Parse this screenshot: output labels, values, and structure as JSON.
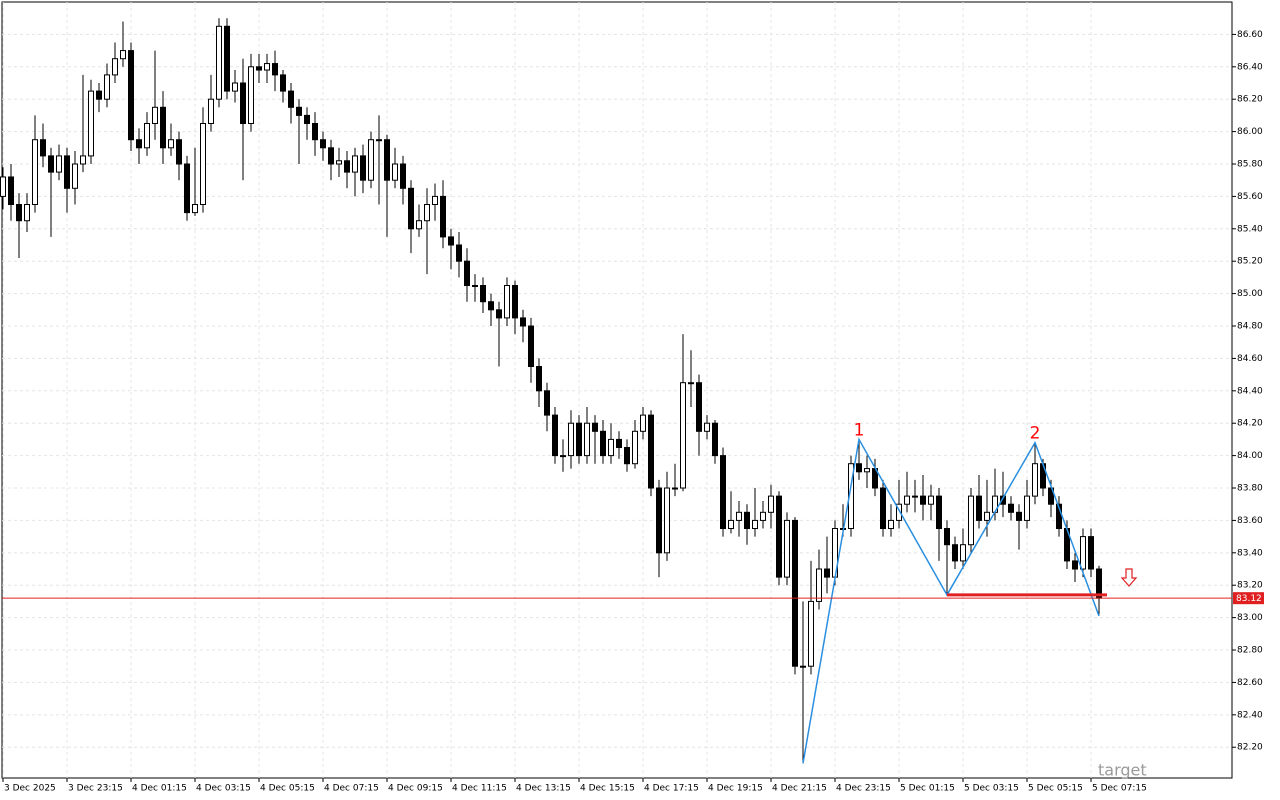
{
  "chart_data": {
    "type": "candlestick",
    "color": "#000000",
    "categories": [
      "3 Dec 2025",
      null,
      null,
      null,
      null,
      null,
      null,
      null,
      "3 Dec 23:15",
      null,
      null,
      null,
      null,
      null,
      null,
      null,
      "4 Dec 01:15",
      null,
      null,
      null,
      null,
      null,
      null,
      null,
      "4 Dec 03:15",
      null,
      null,
      null,
      null,
      null,
      null,
      null,
      "4 Dec 05:15",
      null,
      null,
      null,
      null,
      null,
      null,
      null,
      "4 Dec 07:15",
      null,
      null,
      null,
      null,
      null,
      null,
      null,
      "4 Dec 09:15",
      null,
      null,
      null,
      null,
      null,
      null,
      null,
      "4 Dec 11:15",
      null,
      null,
      null,
      null,
      null,
      null,
      null,
      "4 Dec 13:15",
      null,
      null,
      null,
      null,
      null,
      null,
      null,
      "4 Dec 15:15",
      null,
      null,
      null,
      null,
      null,
      null,
      null,
      "4 Dec 17:15",
      null,
      null,
      null,
      null,
      null,
      null,
      null,
      "4 Dec 19:15",
      null,
      null,
      null,
      null,
      null,
      null,
      null,
      "4 Dec 21:15",
      null,
      null,
      null,
      null,
      null,
      null,
      null,
      "4 Dec 23:15",
      null,
      null,
      null,
      null,
      null,
      null,
      null,
      "5 Dec 01:15",
      null,
      null,
      null,
      null,
      null,
      null,
      null,
      "5 Dec 03:15",
      null,
      null,
      null,
      null,
      null,
      null,
      null,
      "5 Dec 05:15",
      null,
      null,
      null,
      null,
      null,
      null,
      null,
      "5 Dec 07:15",
      null
    ],
    "open": [
      85.6,
      85.72,
      85.55,
      85.45,
      85.55,
      85.95,
      85.85,
      85.75,
      85.85,
      85.65,
      85.8,
      85.85,
      86.25,
      86.2,
      86.35,
      86.45,
      86.5,
      85.95,
      85.9,
      86.05,
      86.15,
      85.9,
      85.95,
      85.8,
      85.5,
      85.55,
      86.05,
      86.2,
      86.65,
      86.25,
      86.3,
      86.05,
      86.4,
      86.38,
      86.42,
      86.35,
      86.25,
      86.15,
      86.1,
      86.05,
      85.95,
      85.9,
      85.8,
      85.82,
      85.75,
      85.85,
      85.7,
      85.95,
      85.95,
      85.7,
      85.8,
      85.65,
      85.4,
      85.45,
      85.55,
      85.6,
      85.35,
      85.3,
      85.2,
      85.05,
      85.05,
      84.95,
      84.9,
      84.85,
      85.05,
      84.85,
      84.8,
      84.55,
      84.4,
      84.25,
      84.0,
      84.0,
      84.2,
      84.0,
      84.2,
      84.15,
      84.0,
      84.1,
      84.05,
      83.95,
      84.15,
      84.25,
      83.8,
      83.4,
      83.8,
      83.8,
      84.45,
      84.45,
      84.15,
      84.2,
      84.0,
      83.55,
      83.6,
      83.65,
      83.55,
      83.6,
      83.65,
      83.75,
      83.25,
      83.6,
      82.7,
      82.7,
      83.1,
      83.3,
      83.25,
      83.55,
      83.55,
      83.95,
      83.9,
      83.92,
      83.8,
      83.55,
      83.6,
      83.7,
      83.75,
      83.75,
      83.7,
      83.75,
      83.55,
      83.45,
      83.35,
      83.45,
      83.75,
      83.6,
      83.65,
      83.75,
      83.7,
      83.65,
      83.6,
      83.75,
      83.95,
      83.8,
      83.7,
      83.55,
      83.35,
      83.3,
      83.5,
      83.3
    ],
    "high": [
      85.78,
      85.8,
      85.62,
      85.62,
      86.1,
      86.05,
      85.9,
      85.92,
      85.9,
      85.88,
      86.35,
      86.32,
      86.3,
      86.42,
      86.55,
      86.68,
      86.55,
      86.02,
      86.12,
      86.5,
      86.25,
      86.05,
      86.0,
      85.85,
      85.9,
      86.15,
      86.35,
      86.7,
      86.7,
      86.38,
      86.45,
      86.48,
      86.48,
      86.48,
      86.5,
      86.38,
      86.3,
      86.2,
      86.15,
      86.12,
      86.0,
      85.95,
      85.9,
      85.88,
      85.9,
      85.92,
      86.0,
      86.1,
      85.98,
      85.9,
      85.85,
      85.7,
      85.55,
      85.65,
      85.68,
      85.7,
      85.4,
      85.38,
      85.28,
      85.12,
      85.1,
      85.0,
      84.95,
      85.1,
      85.08,
      84.9,
      84.85,
      84.6,
      84.45,
      84.3,
      84.1,
      84.28,
      84.25,
      84.3,
      84.25,
      84.22,
      84.2,
      84.15,
      84.1,
      84.22,
      84.3,
      84.28,
      83.85,
      83.9,
      83.95,
      84.75,
      84.65,
      84.5,
      84.25,
      84.22,
      84.05,
      83.78,
      83.72,
      83.7,
      83.8,
      83.72,
      83.82,
      83.78,
      83.65,
      83.62,
      83.1,
      83.35,
      83.42,
      83.5,
      83.6,
      83.7,
      84.0,
      84.1,
      84.0,
      83.98,
      83.85,
      83.7,
      83.85,
      83.9,
      83.85,
      83.88,
      83.82,
      83.8,
      83.6,
      83.5,
      83.55,
      83.8,
      83.88,
      83.85,
      83.92,
      83.9,
      83.75,
      83.7,
      83.85,
      84.08,
      83.98,
      83.85,
      83.75,
      83.6,
      83.4,
      83.55,
      83.55,
      83.32
    ],
    "low": [
      85.52,
      85.45,
      85.22,
      85.38,
      85.5,
      85.78,
      85.35,
      85.7,
      85.5,
      85.55,
      85.75,
      85.8,
      86.12,
      86.15,
      86.3,
      86.4,
      85.88,
      85.8,
      85.85,
      85.95,
      85.8,
      85.85,
      85.7,
      85.45,
      85.48,
      85.5,
      86.0,
      86.15,
      86.2,
      86.18,
      85.7,
      86.0,
      86.3,
      86.3,
      86.25,
      86.18,
      86.05,
      85.8,
      85.95,
      85.85,
      85.82,
      85.7,
      85.72,
      85.65,
      85.6,
      85.62,
      85.65,
      85.55,
      85.35,
      85.65,
      85.55,
      85.25,
      85.35,
      85.12,
      85.45,
      85.28,
      85.15,
      85.1,
      84.95,
      84.95,
      84.88,
      84.8,
      84.55,
      84.8,
      84.75,
      84.7,
      84.45,
      84.3,
      84.15,
      83.95,
      83.9,
      83.92,
      83.95,
      83.95,
      83.95,
      83.95,
      83.95,
      83.98,
      83.9,
      83.92,
      84.1,
      83.75,
      83.25,
      83.35,
      83.75,
      83.78,
      84.3,
      84.0,
      84.1,
      83.95,
      83.5,
      83.52,
      83.5,
      83.45,
      83.5,
      83.55,
      83.55,
      83.2,
      83.2,
      82.65,
      82.1,
      82.65,
      83.05,
      83.15,
      83.2,
      83.5,
      83.5,
      83.85,
      83.8,
      83.75,
      83.5,
      83.5,
      83.55,
      83.65,
      83.65,
      83.6,
      83.6,
      83.35,
      83.15,
      83.3,
      83.3,
      83.4,
      83.55,
      83.5,
      83.6,
      83.62,
      83.6,
      83.42,
      83.55,
      83.7,
      83.75,
      83.62,
      83.5,
      83.3,
      83.22,
      83.25,
      83.25,
      83.02
    ],
    "close": [
      85.72,
      85.55,
      85.45,
      85.55,
      85.95,
      85.85,
      85.75,
      85.85,
      85.65,
      85.8,
      85.85,
      86.25,
      86.2,
      86.35,
      86.45,
      86.5,
      85.95,
      85.9,
      86.05,
      86.15,
      85.9,
      85.95,
      85.8,
      85.5,
      85.55,
      86.05,
      86.2,
      86.65,
      86.25,
      86.3,
      86.05,
      86.4,
      86.38,
      86.42,
      86.35,
      86.25,
      86.15,
      86.1,
      86.05,
      85.95,
      85.9,
      85.8,
      85.82,
      85.75,
      85.85,
      85.7,
      85.95,
      85.95,
      85.7,
      85.8,
      85.65,
      85.4,
      85.45,
      85.55,
      85.6,
      85.35,
      85.3,
      85.2,
      85.05,
      85.05,
      84.95,
      84.9,
      84.85,
      85.05,
      84.85,
      84.8,
      84.55,
      84.4,
      84.25,
      84.0,
      84.0,
      84.2,
      84.0,
      84.2,
      84.15,
      84.0,
      84.1,
      84.05,
      83.95,
      84.15,
      84.25,
      83.8,
      83.4,
      83.8,
      83.8,
      84.45,
      84.45,
      84.15,
      84.2,
      84.0,
      83.55,
      83.6,
      83.65,
      83.55,
      83.6,
      83.65,
      83.75,
      83.25,
      83.6,
      82.7,
      82.7,
      83.1,
      83.3,
      83.25,
      83.55,
      83.55,
      83.95,
      83.9,
      83.92,
      83.8,
      83.55,
      83.6,
      83.7,
      83.75,
      83.75,
      83.7,
      83.75,
      83.55,
      83.45,
      83.35,
      83.45,
      83.75,
      83.6,
      83.65,
      83.75,
      83.7,
      83.65,
      83.6,
      83.75,
      83.95,
      83.8,
      83.7,
      83.55,
      83.35,
      83.3,
      83.5,
      83.3,
      83.12
    ],
    "ylim": [
      82.01,
      86.8
    ],
    "yticks": [
      {
        "value": 82.2,
        "label": "82.20"
      },
      {
        "value": 82.4,
        "label": "82.40"
      },
      {
        "value": 82.6,
        "label": "82.60"
      },
      {
        "value": 82.8,
        "label": "82.80"
      },
      {
        "value": 83.0,
        "label": "83.00"
      },
      {
        "value": 83.2,
        "label": "83.20"
      },
      {
        "value": 83.4,
        "label": "83.40"
      },
      {
        "value": 83.6,
        "label": "83.60"
      },
      {
        "value": 83.8,
        "label": "83.80"
      },
      {
        "value": 84.0,
        "label": "84.00"
      },
      {
        "value": 84.2,
        "label": "84.20"
      },
      {
        "value": 84.4,
        "label": "84.40"
      },
      {
        "value": 84.6,
        "label": "84.60"
      },
      {
        "value": 84.8,
        "label": "84.80"
      },
      {
        "value": 85.0,
        "label": "85.00"
      },
      {
        "value": 85.2,
        "label": "85.20"
      },
      {
        "value": 85.4,
        "label": "85.40"
      },
      {
        "value": 85.6,
        "label": "85.60"
      },
      {
        "value": 85.8,
        "label": "85.80"
      },
      {
        "value": 86.0,
        "label": "86.00"
      },
      {
        "value": 86.2,
        "label": "86.20"
      },
      {
        "value": 86.4,
        "label": "86.40"
      },
      {
        "value": 86.6,
        "label": "86.60"
      }
    ],
    "grid": true,
    "last_price": {
      "value": 83.12,
      "color": "#e02020"
    },
    "zigzag": {
      "color": "#2a8fe0",
      "x": [
        100,
        107,
        118,
        129,
        137
      ],
      "values": [
        82.1,
        84.1,
        83.14,
        84.08,
        83.01
      ],
      "labels": [
        null,
        "1",
        null,
        "2",
        null
      ],
      "label_color": "#ff0000"
    },
    "neckline": {
      "value": 83.14,
      "x": [
        118,
        138
      ],
      "color": "#e02020"
    },
    "annotation": "target"
  }
}
